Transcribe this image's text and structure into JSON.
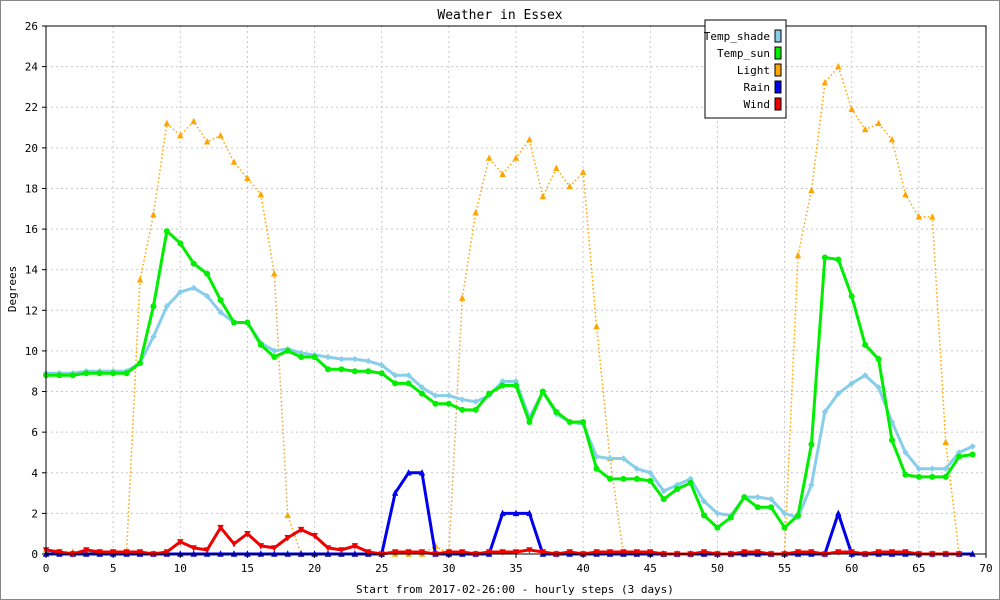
{
  "chart_data": {
    "type": "line",
    "title": "Weather in Essex",
    "xlabel": "Start from 2017-02-26:00 - hourly steps (3 days)",
    "ylabel": "Degrees",
    "xlim": [
      0,
      70
    ],
    "ylim": [
      0,
      26
    ],
    "x_ticks": [
      0,
      5,
      10,
      15,
      20,
      25,
      30,
      35,
      40,
      45,
      50,
      55,
      60,
      65,
      70
    ],
    "y_ticks": [
      0,
      2,
      4,
      6,
      8,
      10,
      12,
      14,
      16,
      18,
      20,
      22,
      24,
      26
    ],
    "grid": true,
    "legend_position": "top-right",
    "series": [
      {
        "name": "Temp_shade",
        "color": "#87CEEB",
        "marker": "diamond",
        "line": "solid",
        "values": [
          8.9,
          8.9,
          8.9,
          9.0,
          9.0,
          9.0,
          9.0,
          9.4,
          10.7,
          12.2,
          12.9,
          13.1,
          12.7,
          11.9,
          11.4,
          11.4,
          10.4,
          10.0,
          10.1,
          9.9,
          9.8,
          9.7,
          9.6,
          9.6,
          9.5,
          9.3,
          8.8,
          8.8,
          8.2,
          7.8,
          7.8,
          7.6,
          7.5,
          7.8,
          8.5,
          8.5,
          6.7,
          8.0,
          6.9,
          6.5,
          6.4,
          4.8,
          4.7,
          4.7,
          4.2,
          4.0,
          3.1,
          3.4,
          3.7,
          2.6,
          2.0,
          1.9,
          2.8,
          2.8,
          2.7,
          2.0,
          1.8,
          3.4,
          7.0,
          7.9,
          8.4,
          8.8,
          8.2,
          6.5,
          5.0,
          4.2,
          4.2,
          4.2,
          5.0,
          5.3
        ]
      },
      {
        "name": "Temp_sun",
        "color": "#00EE00",
        "marker": "circle",
        "line": "solid",
        "values": [
          8.8,
          8.8,
          8.8,
          8.9,
          8.9,
          8.9,
          8.9,
          9.4,
          12.2,
          15.9,
          15.3,
          14.3,
          13.8,
          12.5,
          11.4,
          11.4,
          10.3,
          9.7,
          10.0,
          9.7,
          9.7,
          9.1,
          9.1,
          9.0,
          9.0,
          8.9,
          8.4,
          8.4,
          7.9,
          7.4,
          7.4,
          7.1,
          7.1,
          7.9,
          8.3,
          8.3,
          6.5,
          8.0,
          7.0,
          6.5,
          6.5,
          4.2,
          3.7,
          3.7,
          3.7,
          3.6,
          2.7,
          3.2,
          3.5,
          1.9,
          1.3,
          1.8,
          2.8,
          2.3,
          2.3,
          1.3,
          1.9,
          5.4,
          14.6,
          14.5,
          12.7,
          10.3,
          9.6,
          5.6,
          3.9,
          3.8,
          3.8,
          3.8,
          4.8,
          4.9
        ]
      },
      {
        "name": "Light",
        "color": "#FFA500",
        "marker": "triangle",
        "line": "dotted",
        "values": [
          0.2,
          0.1,
          0.1,
          0.1,
          0.1,
          0.1,
          0.1,
          13.5,
          16.7,
          21.2,
          20.6,
          21.3,
          20.3,
          20.6,
          19.3,
          18.5,
          17.7,
          13.8,
          1.9,
          0.0,
          0.0,
          0.0,
          0.0,
          0.0,
          0.0,
          0.0,
          0.0,
          0.0,
          0.0,
          0.4,
          0.0,
          12.6,
          16.8,
          19.5,
          18.7,
          19.5,
          20.4,
          17.6,
          19.0,
          18.1,
          18.8,
          11.2,
          4.7,
          0.0,
          0.0,
          0.0,
          0.0,
          0.0,
          0.0,
          0.0,
          0.0,
          0.0,
          0.0,
          0.0,
          0.0,
          0.0,
          14.7,
          17.9,
          23.2,
          24.0,
          21.9,
          20.9,
          21.2,
          20.4,
          17.7,
          16.6,
          16.6,
          5.5,
          0.0
        ]
      },
      {
        "name": "Rain",
        "color": "#0000EE",
        "marker": "triangle",
        "line": "solid",
        "values": [
          0,
          0,
          0,
          0,
          0,
          0,
          0,
          0,
          0,
          0,
          0,
          0,
          0,
          0,
          0,
          0,
          0,
          0,
          0,
          0,
          0,
          0,
          0,
          0,
          0,
          0,
          3.0,
          4.0,
          4.0,
          0,
          0,
          0,
          0,
          0,
          2.0,
          2.0,
          2.0,
          0,
          0,
          0,
          0,
          0,
          0,
          0,
          0,
          0,
          0,
          0,
          0,
          0,
          0,
          0,
          0,
          0,
          0,
          0,
          0,
          0,
          0,
          2.0,
          0,
          0,
          0,
          0,
          0,
          0,
          0,
          0,
          0,
          0
        ]
      },
      {
        "name": "Wind",
        "color": "#EE0000",
        "marker": "triangle-down",
        "line": "solid",
        "values": [
          0.2,
          0.1,
          0.0,
          0.2,
          0.1,
          0.1,
          0.1,
          0.1,
          0.0,
          0.1,
          0.6,
          0.3,
          0.2,
          1.3,
          0.5,
          1.0,
          0.4,
          0.3,
          0.8,
          1.2,
          0.9,
          0.3,
          0.2,
          0.4,
          0.1,
          0.0,
          0.1,
          0.1,
          0.1,
          0.0,
          0.1,
          0.1,
          0.0,
          0.1,
          0.1,
          0.1,
          0.2,
          0.1,
          0.0,
          0.1,
          0.0,
          0.1,
          0.1,
          0.1,
          0.1,
          0.1,
          0.0,
          0.0,
          0.0,
          0.1,
          0.0,
          0.0,
          0.1,
          0.1,
          0.0,
          0.0,
          0.1,
          0.1,
          0.0,
          0.1,
          0.1,
          0.0,
          0.1,
          0.1,
          0.1,
          0.0,
          0.0,
          0.0,
          0.0
        ]
      }
    ]
  }
}
